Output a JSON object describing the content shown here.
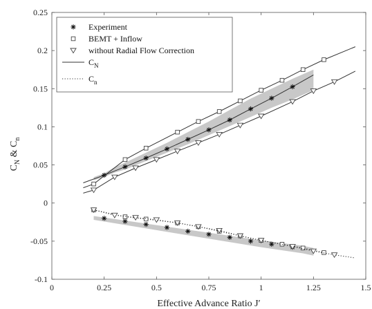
{
  "chart_data": {
    "type": "line",
    "title": "",
    "xlabel": "Effective Advance Ratio  J′",
    "ylabel_parts": {
      "c1": "C",
      "s1": "N",
      "mid": " & ",
      "c2": "C",
      "s2": "n"
    },
    "xlim": [
      0,
      1.5
    ],
    "ylim": [
      -0.1,
      0.25
    ],
    "x_ticks": [
      0,
      0.25,
      0.5,
      0.75,
      1,
      1.25,
      1.5
    ],
    "x_tick_labels": [
      "0",
      "0.25",
      "0.5",
      "0.75",
      "1",
      "1.25",
      "1.5"
    ],
    "y_ticks": [
      -0.1,
      -0.05,
      0,
      0.05,
      0.1,
      0.15,
      0.2,
      0.25
    ],
    "y_tick_labels": [
      "-0.1",
      "-0.05",
      "0",
      "0.05",
      "0.1",
      "0.15",
      "0.2",
      "0.25"
    ],
    "grid": false,
    "legend": {
      "placement": "top-left",
      "entries": [
        {
          "symbol": "asterisk",
          "label": "Experiment"
        },
        {
          "symbol": "square",
          "label": "BEMT + Inflow"
        },
        {
          "symbol": "triangle-down",
          "label": "without Radial Flow Correction"
        },
        {
          "symbol": "solid-line",
          "label_main": "C",
          "label_sub": "N"
        },
        {
          "symbol": "dotted-line",
          "label_main": "C",
          "label_sub": "n"
        }
      ]
    },
    "bands": [
      {
        "x": [
          0.2,
          0.25,
          0.3,
          0.35,
          0.45,
          0.55,
          0.65,
          0.75,
          0.85,
          0.95,
          1.05,
          1.15,
          1.25
        ],
        "lower": [
          0.03,
          0.034,
          0.04,
          0.044,
          0.055,
          0.066,
          0.077,
          0.089,
          0.101,
          0.113,
          0.125,
          0.136,
          0.148
        ],
        "upper": [
          0.034,
          0.039,
          0.047,
          0.053,
          0.066,
          0.079,
          0.093,
          0.107,
          0.122,
          0.137,
          0.15,
          0.163,
          0.175
        ]
      },
      {
        "x": [
          0.2,
          0.4,
          0.6,
          0.8,
          1.0,
          1.2,
          1.25
        ],
        "lower": [
          -0.022,
          -0.031,
          -0.04,
          -0.049,
          -0.058,
          -0.066,
          -0.069
        ],
        "upper": [
          -0.017,
          -0.025,
          -0.033,
          -0.041,
          -0.049,
          -0.056,
          -0.059
        ]
      }
    ],
    "series": [
      {
        "name": "Experiment C_N",
        "kind": "line-markers",
        "marker": "asterisk",
        "dash": "solid",
        "x": [
          0.15,
          0.25,
          0.35,
          0.45,
          0.55,
          0.65,
          0.75,
          0.85,
          0.95,
          1.05,
          1.15,
          1.25
        ],
        "y": [
          0.0265,
          0.0365,
          0.0475,
          0.059,
          0.071,
          0.0835,
          0.096,
          0.109,
          0.1235,
          0.1375,
          0.1525,
          0.168
        ],
        "marker_x": [
          0.25,
          0.35,
          0.45,
          0.55,
          0.65,
          0.75,
          0.85,
          0.95,
          1.05,
          1.15
        ],
        "marker_y": [
          0.0365,
          0.0475,
          0.059,
          0.071,
          0.0835,
          0.096,
          0.109,
          0.1235,
          0.1375,
          0.1525
        ]
      },
      {
        "name": "BEMT + Inflow C_N",
        "kind": "line-markers",
        "marker": "square",
        "dash": "solid",
        "x": [
          0.15,
          0.2,
          0.35,
          0.45,
          0.6,
          0.7,
          0.8,
          0.9,
          1.0,
          1.1,
          1.2,
          1.3,
          1.45
        ],
        "y": [
          0.02,
          0.025,
          0.057,
          0.072,
          0.093,
          0.107,
          0.12,
          0.134,
          0.148,
          0.161,
          0.175,
          0.188,
          0.205
        ],
        "marker_x": [
          0.2,
          0.35,
          0.45,
          0.6,
          0.7,
          0.8,
          0.9,
          1.0,
          1.1,
          1.2,
          1.3
        ],
        "marker_y": [
          0.025,
          0.057,
          0.072,
          0.093,
          0.107,
          0.12,
          0.134,
          0.148,
          0.161,
          0.175,
          0.188
        ]
      },
      {
        "name": "without Radial Flow Correction C_N",
        "kind": "line-markers",
        "marker": "triangle-down",
        "dash": "solid",
        "x": [
          0.15,
          0.2,
          0.3,
          0.4,
          0.5,
          0.6,
          0.7,
          0.8,
          0.9,
          1.0,
          1.15,
          1.25,
          1.35,
          1.45
        ],
        "y": [
          0.013,
          0.017,
          0.034,
          0.046,
          0.057,
          0.068,
          0.079,
          0.09,
          0.102,
          0.114,
          0.133,
          0.147,
          0.159,
          0.173
        ],
        "marker_x": [
          0.2,
          0.3,
          0.4,
          0.5,
          0.6,
          0.7,
          0.8,
          0.9,
          1.0,
          1.15,
          1.25,
          1.35
        ],
        "marker_y": [
          0.017,
          0.034,
          0.046,
          0.057,
          0.068,
          0.079,
          0.09,
          0.102,
          0.114,
          0.133,
          0.147,
          0.159
        ]
      },
      {
        "name": "Experiment C_n",
        "kind": "line-markers",
        "marker": "asterisk",
        "dash": "none",
        "x": [
          0.25,
          0.35,
          0.45,
          0.55,
          0.65,
          0.75,
          0.85,
          0.95,
          1.05,
          1.15
        ],
        "y": [
          -0.02,
          -0.024,
          -0.028,
          -0.032,
          -0.037,
          -0.041,
          -0.045,
          -0.05,
          -0.054,
          -0.058
        ],
        "marker_x": [
          0.25,
          0.35,
          0.45,
          0.55,
          0.65,
          0.75,
          0.85,
          0.95,
          1.05,
          1.15
        ],
        "marker_y": [
          -0.02,
          -0.024,
          -0.028,
          -0.032,
          -0.037,
          -0.041,
          -0.045,
          -0.05,
          -0.054,
          -0.058
        ]
      },
      {
        "name": "BEMT + Inflow C_n",
        "kind": "line-markers",
        "marker": "square",
        "dash": "dotted",
        "x": [
          0.2,
          0.35,
          0.45,
          0.6,
          0.7,
          0.8,
          0.9,
          1.0,
          1.1,
          1.2,
          1.3
        ],
        "y": [
          -0.009,
          -0.018,
          -0.021,
          -0.026,
          -0.031,
          -0.037,
          -0.043,
          -0.049,
          -0.054,
          -0.059,
          -0.065
        ],
        "marker_x": [
          0.2,
          0.35,
          0.45,
          0.6,
          0.7,
          0.8,
          0.9,
          1.0,
          1.1,
          1.2,
          1.3
        ],
        "marker_y": [
          -0.009,
          -0.018,
          -0.021,
          -0.026,
          -0.031,
          -0.037,
          -0.043,
          -0.049,
          -0.054,
          -0.059,
          -0.065
        ]
      },
      {
        "name": "without Radial Flow Correction C_n",
        "kind": "line-markers",
        "marker": "triangle-down",
        "dash": "dotted",
        "x": [
          0.2,
          0.3,
          0.4,
          0.5,
          0.6,
          0.7,
          0.8,
          0.9,
          1.0,
          1.15,
          1.25,
          1.35,
          1.45
        ],
        "y": [
          -0.009,
          -0.016,
          -0.019,
          -0.022,
          -0.026,
          -0.031,
          -0.036,
          -0.043,
          -0.049,
          -0.057,
          -0.063,
          -0.068,
          -0.072
        ],
        "marker_x": [
          0.2,
          0.3,
          0.4,
          0.5,
          0.6,
          0.7,
          0.8,
          0.9,
          1.0,
          1.15,
          1.25,
          1.35
        ],
        "marker_y": [
          -0.009,
          -0.016,
          -0.019,
          -0.022,
          -0.026,
          -0.031,
          -0.036,
          -0.043,
          -0.049,
          -0.057,
          -0.063,
          -0.068
        ]
      }
    ]
  }
}
